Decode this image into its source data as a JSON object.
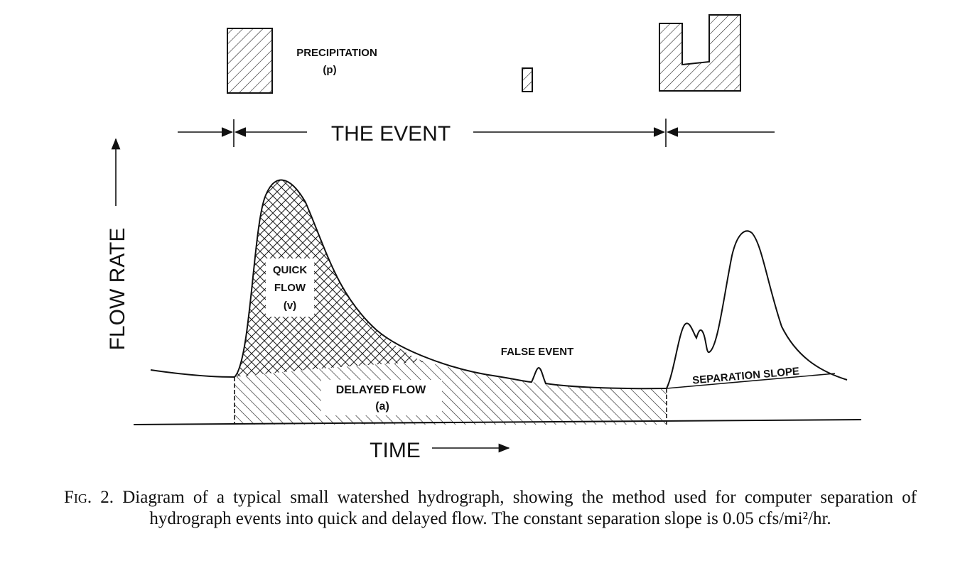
{
  "diagram": {
    "precipitation_label": "PRECIPITATION",
    "precipitation_symbol": "(p)",
    "event_label": "THE EVENT",
    "y_axis_label": "FLOW RATE",
    "x_axis_label": "TIME",
    "quick_flow_label": [
      "QUICK",
      "FLOW",
      "(v)"
    ],
    "delayed_flow_label": [
      "DELAYED FLOW",
      "(a)"
    ],
    "false_event_label": "FALSE EVENT",
    "separation_slope_label": "SEPARATION SLOPE"
  },
  "caption": {
    "figure_label": "Fig. 2.",
    "text": "Diagram of a typical small watershed hydrograph, showing the method used for computer separation of hydrograph events into quick and delayed flow. The constant separation slope is 0.05 cfs/mi²/hr."
  }
}
